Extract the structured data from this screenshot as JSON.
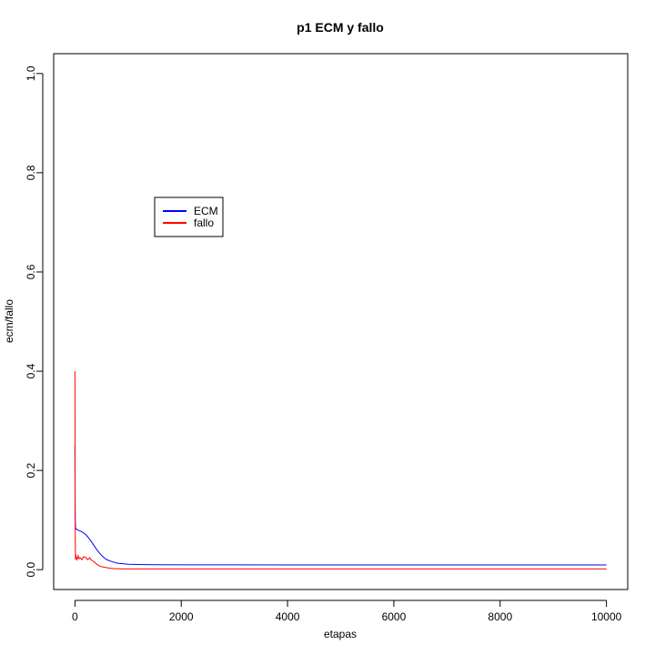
{
  "chart_data": {
    "type": "line",
    "title": "p1 ECM y fallo",
    "xlabel": "etapas",
    "ylabel": "ecm/fallo",
    "xlim": [
      -400,
      10400
    ],
    "ylim": [
      -0.04,
      1.04
    ],
    "x_ticks": [
      0,
      2000,
      4000,
      6000,
      8000,
      10000
    ],
    "x_tick_labels": [
      "0",
      "2000",
      "4000",
      "6000",
      "8000",
      "10000"
    ],
    "y_ticks": [
      0.0,
      0.2,
      0.4,
      0.6,
      0.8,
      1.0
    ],
    "y_tick_labels": [
      "0.0",
      "0.2",
      "0.4",
      "0.6",
      "0.8",
      "1.0"
    ],
    "grid": false,
    "legend_position": "upper-left",
    "series": [
      {
        "name": "ECM",
        "color": "#0000ff",
        "x": [
          0,
          1,
          3,
          6,
          10,
          20,
          50,
          100,
          150,
          200,
          250,
          300,
          350,
          400,
          450,
          500,
          550,
          600,
          700,
          800,
          900,
          1000,
          1200,
          1500,
          2000,
          3000,
          4000,
          5000,
          6000,
          7000,
          8000,
          9000,
          10000
        ],
        "y": [
          0.25,
          0.19,
          0.13,
          0.1,
          0.086,
          0.082,
          0.08,
          0.078,
          0.075,
          0.071,
          0.065,
          0.058,
          0.05,
          0.042,
          0.035,
          0.029,
          0.024,
          0.02,
          0.016,
          0.013,
          0.012,
          0.011,
          0.0105,
          0.01,
          0.0098,
          0.0097,
          0.0096,
          0.0096,
          0.0095,
          0.0095,
          0.0095,
          0.0095,
          0.0095
        ]
      },
      {
        "name": "fallo",
        "color": "#ff0000",
        "x": [
          0,
          2,
          5,
          8,
          12,
          18,
          25,
          40,
          60,
          80,
          100,
          130,
          160,
          200,
          240,
          280,
          300,
          330,
          370,
          400,
          420,
          450,
          500,
          550,
          600,
          650,
          700,
          750,
          800,
          900,
          1000,
          2000,
          4000,
          6000,
          8000,
          10000
        ],
        "y": [
          0.4,
          0.2,
          0.08,
          0.04,
          0.02,
          0.03,
          0.025,
          0.02,
          0.028,
          0.022,
          0.024,
          0.02,
          0.026,
          0.025,
          0.02,
          0.024,
          0.02,
          0.018,
          0.015,
          0.012,
          0.01,
          0.008,
          0.006,
          0.005,
          0.004,
          0.003,
          0.0025,
          0.002,
          0.002,
          0.0015,
          0.0015,
          0.0015,
          0.0015,
          0.0015,
          0.0015,
          0.0015
        ]
      }
    ]
  }
}
